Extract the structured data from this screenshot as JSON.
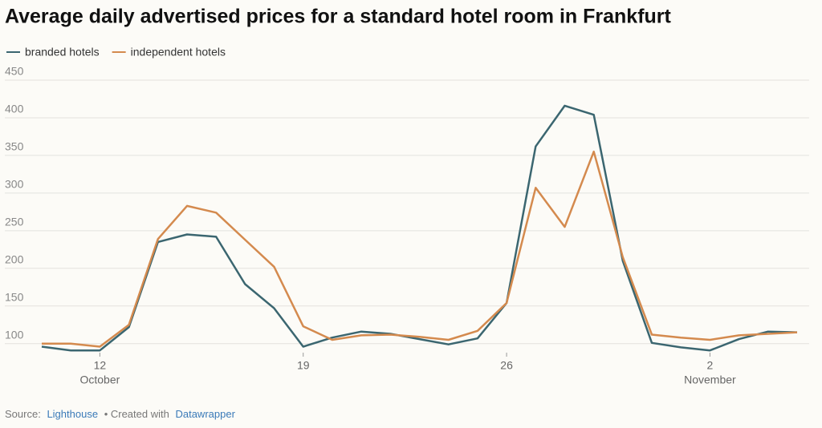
{
  "chart_data": {
    "type": "line",
    "title": "Average daily advertised prices for a standard hotel room in Frankfurt",
    "categories": [
      null,
      null,
      "12",
      null,
      null,
      null,
      null,
      null,
      null,
      "19",
      null,
      null,
      null,
      null,
      null,
      null,
      "26",
      null,
      null,
      null,
      null,
      null,
      null,
      "2",
      null,
      null,
      null
    ],
    "x_sublabels": [
      null,
      null,
      "October",
      null,
      null,
      null,
      null,
      null,
      null,
      null,
      null,
      null,
      null,
      null,
      null,
      null,
      null,
      null,
      null,
      null,
      null,
      null,
      null,
      "November",
      null,
      null,
      null
    ],
    "series": [
      {
        "name": "branded hotels",
        "color": "#3b6670",
        "values": [
          96,
          91,
          91,
          122,
          235,
          245,
          242,
          179,
          147,
          96,
          108,
          116,
          113,
          106,
          99,
          107,
          154,
          362,
          416,
          404,
          210,
          101,
          95,
          91,
          106,
          116,
          115
        ]
      },
      {
        "name": "independent hotels",
        "color": "#d48a4e",
        "values": [
          100,
          100,
          96,
          125,
          239,
          283,
          274,
          238,
          202,
          123,
          105,
          111,
          112,
          109,
          105,
          117,
          154,
          307,
          255,
          355,
          215,
          112,
          108,
          105,
          111,
          113,
          115
        ]
      }
    ],
    "ylim": [
      88,
      450
    ],
    "yticks": [
      100,
      150,
      200,
      250,
      300,
      350,
      400,
      450
    ],
    "grid": true,
    "legend": "top-left",
    "source": {
      "prefix": "Source:",
      "name": "Lighthouse",
      "middle": "• Created with",
      "tool": "Datawrapper"
    }
  }
}
